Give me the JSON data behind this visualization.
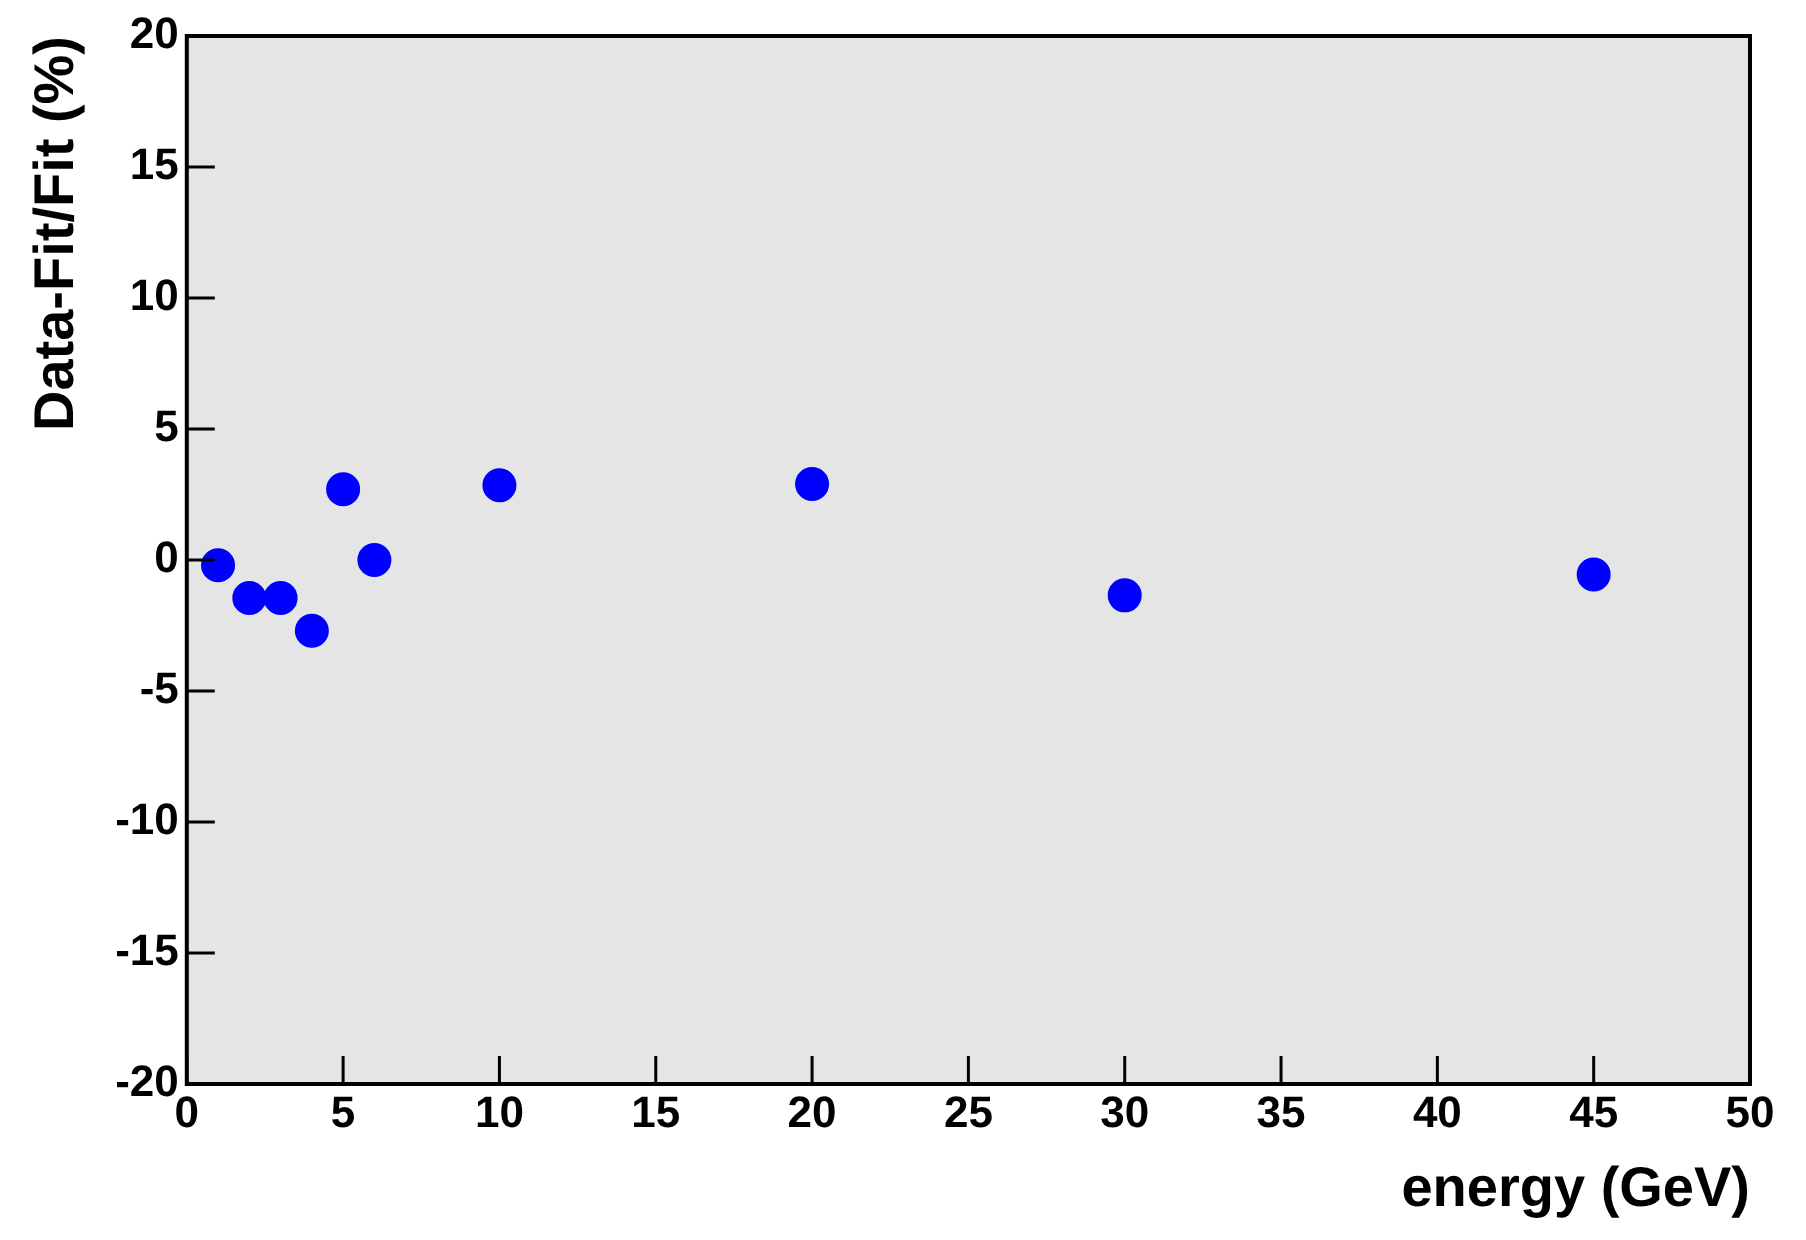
{
  "chart_data": {
    "type": "scatter",
    "xlabel": "energy (GeV)",
    "ylabel": "Data-Fit/Fit (%)",
    "x": [
      1,
      2,
      3,
      4,
      5,
      6,
      10,
      20,
      30,
      45
    ],
    "series": [
      {
        "color": "#0000ff",
        "values": [
          -0.2,
          -1.45,
          -1.45,
          -2.7,
          2.7,
          0,
          2.85,
          2.9,
          -1.35,
          -0.55
        ]
      }
    ],
    "xlim": [
      0,
      50
    ],
    "xticks": [
      0,
      5,
      10,
      15,
      20,
      25,
      30,
      35,
      40,
      45,
      50
    ],
    "ylim": [
      -20,
      20
    ],
    "yticks": [
      -20,
      -15,
      -10,
      -5,
      0,
      5,
      10,
      15,
      20
    ],
    "grid": false,
    "legend": false,
    "marker": "circle"
  }
}
